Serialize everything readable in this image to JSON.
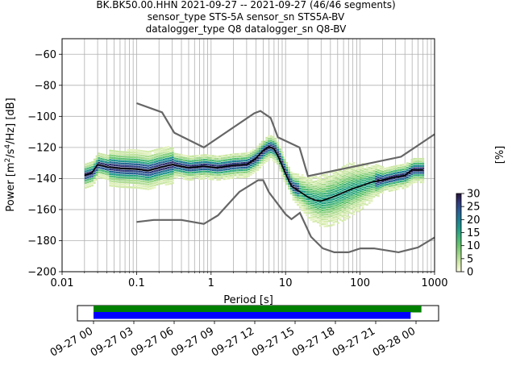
{
  "chart_data": [
    {
      "type": "heatmap",
      "title_lines": [
        "BK.BK50.00.HHN   2021-09-27 -- 2021-09-27  (46/46 segments)",
        "sensor_type STS-5A sensor_sn STS5A-BV",
        "datalogger_type Q8 datalogger_sn Q8-BV"
      ],
      "xlabel": "Period [s]",
      "ylabel_parts": [
        "Power [m",
        "2",
        "/s",
        "4",
        "/Hz] [dB]"
      ],
      "x_scale": "log",
      "xlim": [
        0.01,
        1000
      ],
      "ylim": [
        -200,
        -50
      ],
      "x_ticks": [
        {
          "value": 0.01,
          "label": "0.01"
        },
        {
          "value": 0.1,
          "label": "0.1"
        },
        {
          "value": 1,
          "label": "1"
        },
        {
          "value": 10,
          "label": "10"
        },
        {
          "value": 100,
          "label": "100"
        },
        {
          "value": 1000,
          "label": "1000"
        }
      ],
      "y_ticks": [
        {
          "value": -60,
          "label": "−60"
        },
        {
          "value": -80,
          "label": "−80"
        },
        {
          "value": -100,
          "label": "−100"
        },
        {
          "value": -120,
          "label": "−120"
        },
        {
          "value": -140,
          "label": "−140"
        },
        {
          "value": -160,
          "label": "−160"
        },
        {
          "value": -180,
          "label": "−180"
        },
        {
          "value": -200,
          "label": "−200"
        }
      ],
      "grid": true,
      "noise_model_high": [
        [
          0.1,
          -91.5
        ],
        [
          0.22,
          -97.4
        ],
        [
          0.32,
          -110.5
        ],
        [
          0.8,
          -120
        ],
        [
          3.8,
          -98
        ],
        [
          4.6,
          -96.5
        ],
        [
          6.3,
          -101
        ],
        [
          7.9,
          -113.5
        ],
        [
          15.4,
          -120
        ],
        [
          20,
          -138.5
        ],
        [
          354.8,
          -126
        ],
        [
          1000,
          -111.5
        ]
      ],
      "noise_model_low": [
        [
          0.1,
          -168
        ],
        [
          0.17,
          -166.7
        ],
        [
          0.4,
          -166.7
        ],
        [
          0.8,
          -169.2
        ],
        [
          1.24,
          -163.7
        ],
        [
          2.4,
          -148.6
        ],
        [
          4.3,
          -141.1
        ],
        [
          5,
          -141.1
        ],
        [
          6,
          -149
        ],
        [
          10,
          -163
        ],
        [
          12,
          -166.2
        ],
        [
          15.6,
          -162.1
        ],
        [
          21.9,
          -177.5
        ],
        [
          31.6,
          -185
        ],
        [
          45,
          -187.5
        ],
        [
          70,
          -187.5
        ],
        [
          101,
          -185
        ],
        [
          154,
          -185
        ],
        [
          328,
          -187.5
        ],
        [
          600,
          -184.4
        ],
        [
          1000,
          -178
        ]
      ],
      "median_curve": [
        [
          0.02,
          -138
        ],
        [
          0.025,
          -136.5
        ],
        [
          0.03,
          -131
        ],
        [
          0.04,
          -132.5
        ],
        [
          0.06,
          -133.5
        ],
        [
          0.1,
          -134
        ],
        [
          0.14,
          -135
        ],
        [
          0.2,
          -133
        ],
        [
          0.3,
          -131
        ],
        [
          0.5,
          -133
        ],
        [
          0.8,
          -132
        ],
        [
          1.2,
          -133
        ],
        [
          2,
          -131.5
        ],
        [
          3,
          -131
        ],
        [
          4,
          -127
        ],
        [
          5,
          -122
        ],
        [
          6,
          -119.5
        ],
        [
          7,
          -121
        ],
        [
          8,
          -126
        ],
        [
          10,
          -137
        ],
        [
          12,
          -145
        ],
        [
          15,
          -148
        ],
        [
          20,
          -152
        ],
        [
          25,
          -154
        ],
        [
          30,
          -154.5
        ],
        [
          40,
          -152.5
        ],
        [
          60,
          -149
        ],
        [
          80,
          -146.5
        ],
        [
          100,
          -145
        ],
        [
          150,
          -142
        ],
        [
          200,
          -141
        ],
        [
          300,
          -139
        ],
        [
          400,
          -138
        ],
        [
          500,
          -134.5
        ],
        [
          700,
          -134.5
        ]
      ],
      "colorbar": {
        "label": "[%]",
        "min": 0,
        "max": 30,
        "ticks": [
          {
            "value": 0,
            "label": "0"
          },
          {
            "value": 5,
            "label": "5"
          },
          {
            "value": 10,
            "label": "10"
          },
          {
            "value": 15,
            "label": "15"
          },
          {
            "value": 20,
            "label": "20"
          },
          {
            "value": 25,
            "label": "25"
          },
          {
            "value": 30,
            "label": "30"
          }
        ],
        "colormap": [
          "#fbfbde",
          "#d4ebab",
          "#a1d78a",
          "#6bc76e",
          "#3fb47a",
          "#1f9a8a",
          "#1c7c93",
          "#295c94",
          "#31377a",
          "#251338"
        ]
      }
    },
    {
      "type": "timeline",
      "tick_labels": [
        "09-27 00",
        "09-27 03",
        "09-27 06",
        "09-27 09",
        "09-27 12",
        "09-27 15",
        "09-27 18",
        "09-27 21",
        "09-28 00"
      ],
      "bars": [
        {
          "start_hours": 0,
          "end_hours": 24.4,
          "color": "#008000"
        },
        {
          "start_hours": 0,
          "end_hours": 23.6,
          "color": "#0000ff"
        }
      ]
    }
  ]
}
